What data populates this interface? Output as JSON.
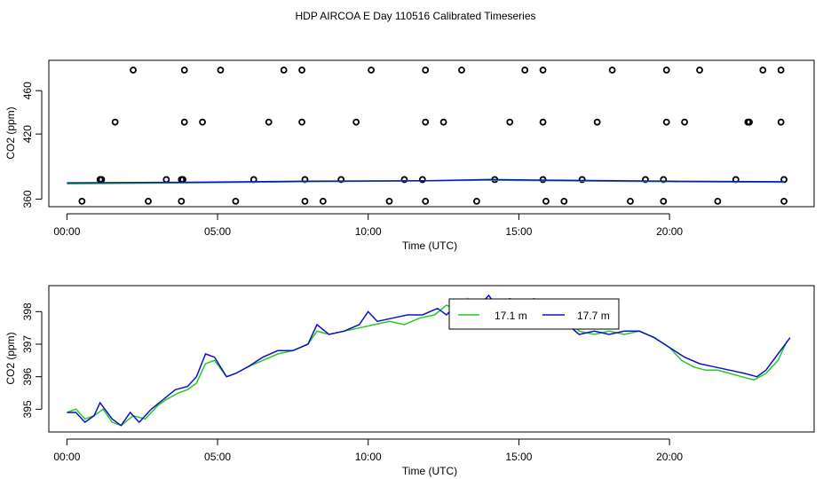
{
  "page_title": "HDP AIRCOA E  Day 110516  Calibrated Timeseries",
  "colors": {
    "green": "#22cc22",
    "blue": "#1010cc",
    "black": "#000000"
  },
  "chart_data": [
    {
      "type": "scatter",
      "title": "",
      "xlabel": "Time (UTC)",
      "ylabel": "CO2 (ppm)",
      "x_unit": "hours",
      "xlim": [
        -0.6,
        24.8
      ],
      "ylim": [
        353,
        488
      ],
      "x_ticks": [
        0,
        5,
        10,
        15,
        20
      ],
      "x_tick_labels": [
        "00:00",
        "05:00",
        "10:00",
        "15:00",
        "20:00"
      ],
      "y_ticks": [
        360,
        420,
        460
      ],
      "y_tick_labels": [
        "360",
        "420",
        "460"
      ],
      "series": [
        {
          "kind": "points",
          "color": "black",
          "points": [
            [
              0.5,
              358
            ],
            [
              2.7,
              358
            ],
            [
              3.8,
              358
            ],
            [
              5.6,
              358
            ],
            [
              7.9,
              358
            ],
            [
              8.5,
              358
            ],
            [
              10.7,
              358
            ],
            [
              11.9,
              358
            ],
            [
              13.6,
              358
            ],
            [
              15.9,
              358
            ],
            [
              16.5,
              358
            ],
            [
              18.7,
              358
            ],
            [
              19.8,
              358
            ],
            [
              21.6,
              358
            ],
            [
              23.8,
              358
            ],
            [
              1.1,
              378
            ],
            [
              1.15,
              378
            ],
            [
              3.3,
              378
            ],
            [
              3.8,
              378
            ],
            [
              3.85,
              378
            ],
            [
              6.2,
              378
            ],
            [
              7.9,
              378
            ],
            [
              9.1,
              378
            ],
            [
              11.2,
              378
            ],
            [
              11.8,
              378
            ],
            [
              14.2,
              378
            ],
            [
              15.8,
              378
            ],
            [
              17.1,
              378
            ],
            [
              19.2,
              378
            ],
            [
              19.8,
              378
            ],
            [
              22.2,
              378
            ],
            [
              23.8,
              378
            ],
            [
              1.6,
              431
            ],
            [
              3.9,
              431
            ],
            [
              4.5,
              431
            ],
            [
              6.7,
              431
            ],
            [
              7.8,
              431
            ],
            [
              9.6,
              431
            ],
            [
              11.9,
              431
            ],
            [
              12.5,
              431
            ],
            [
              14.7,
              431
            ],
            [
              15.8,
              431
            ],
            [
              17.6,
              431
            ],
            [
              19.9,
              431
            ],
            [
              20.5,
              431
            ],
            [
              22.6,
              431
            ],
            [
              22.65,
              431
            ],
            [
              23.7,
              431
            ],
            [
              2.2,
              479
            ],
            [
              3.9,
              479
            ],
            [
              5.1,
              479
            ],
            [
              7.2,
              479
            ],
            [
              7.8,
              479
            ],
            [
              10.1,
              479
            ],
            [
              11.9,
              479
            ],
            [
              13.1,
              479
            ],
            [
              15.2,
              479
            ],
            [
              15.8,
              479
            ],
            [
              18.1,
              479
            ],
            [
              19.9,
              479
            ],
            [
              21.0,
              479
            ],
            [
              23.1,
              479
            ],
            [
              23.7,
              479
            ]
          ]
        },
        {
          "kind": "line",
          "color": "green",
          "points": [
            [
              0,
              374
            ],
            [
              4,
              375
            ],
            [
              8,
              376
            ],
            [
              12,
              377
            ],
            [
              14,
              377.5
            ],
            [
              16,
              377
            ],
            [
              20,
              376
            ],
            [
              23.8,
              375.5
            ]
          ]
        },
        {
          "kind": "line",
          "color": "blue",
          "points": [
            [
              0,
              375
            ],
            [
              4,
              375.5
            ],
            [
              8,
              376.5
            ],
            [
              12,
              377
            ],
            [
              14,
              378
            ],
            [
              16,
              377.5
            ],
            [
              20,
              376.5
            ],
            [
              23.8,
              376
            ]
          ]
        }
      ]
    },
    {
      "type": "line",
      "title": "",
      "xlabel": "Time (UTC)",
      "ylabel": "CO2 (ppm)",
      "x_unit": "hours",
      "xlim": [
        -0.6,
        24.8
      ],
      "ylim": [
        394.3,
        398.8
      ],
      "x_ticks": [
        0,
        5,
        10,
        15,
        20
      ],
      "x_tick_labels": [
        "00:00",
        "05:00",
        "10:00",
        "15:00",
        "20:00"
      ],
      "y_ticks": [
        395,
        396,
        397,
        398
      ],
      "y_tick_labels": [
        "395",
        "396",
        "397",
        "398"
      ],
      "legend_position": "top-center",
      "series": [
        {
          "name": "17.1 m",
          "color": "green",
          "points": [
            [
              0,
              394.9
            ],
            [
              0.3,
              395.0
            ],
            [
              0.6,
              394.7
            ],
            [
              0.9,
              394.8
            ],
            [
              1.2,
              395.0
            ],
            [
              1.5,
              394.6
            ],
            [
              1.8,
              394.5
            ],
            [
              2.2,
              394.8
            ],
            [
              2.6,
              394.7
            ],
            [
              3.0,
              395.1
            ],
            [
              3.3,
              395.3
            ],
            [
              3.7,
              395.5
            ],
            [
              4.0,
              395.6
            ],
            [
              4.3,
              395.8
            ],
            [
              4.6,
              396.4
            ],
            [
              4.9,
              396.5
            ],
            [
              5.3,
              396.0
            ],
            [
              5.6,
              396.1
            ],
            [
              6.0,
              396.3
            ],
            [
              6.5,
              396.5
            ],
            [
              7.0,
              396.7
            ],
            [
              7.5,
              396.8
            ],
            [
              8.0,
              397.0
            ],
            [
              8.3,
              397.4
            ],
            [
              8.7,
              397.3
            ],
            [
              9.2,
              397.4
            ],
            [
              9.7,
              397.5
            ],
            [
              10.2,
              397.6
            ],
            [
              10.7,
              397.7
            ],
            [
              11.2,
              397.6
            ],
            [
              11.7,
              397.8
            ],
            [
              12.2,
              397.9
            ],
            [
              12.6,
              398.2
            ],
            [
              13.0,
              398.0
            ],
            [
              13.3,
              398.4
            ],
            [
              13.6,
              397.9
            ],
            [
              14.0,
              398.1
            ],
            [
              14.5,
              398.2
            ],
            [
              15.0,
              398.3
            ],
            [
              15.4,
              398.2
            ],
            [
              15.8,
              398.3
            ],
            [
              16.2,
              398.0
            ],
            [
              16.6,
              397.8
            ],
            [
              17.0,
              397.4
            ],
            [
              17.5,
              397.3
            ],
            [
              18.0,
              397.4
            ],
            [
              18.5,
              397.3
            ],
            [
              19.0,
              397.4
            ],
            [
              19.5,
              397.2
            ],
            [
              20.0,
              396.9
            ],
            [
              20.4,
              396.5
            ],
            [
              20.8,
              396.3
            ],
            [
              21.2,
              396.2
            ],
            [
              21.6,
              396.2
            ],
            [
              22.0,
              396.1
            ],
            [
              22.4,
              396.0
            ],
            [
              22.8,
              395.9
            ],
            [
              23.2,
              396.1
            ],
            [
              23.6,
              396.5
            ],
            [
              23.9,
              397.1
            ]
          ]
        },
        {
          "name": "17.7 m",
          "color": "blue",
          "points": [
            [
              0,
              394.9
            ],
            [
              0.3,
              394.9
            ],
            [
              0.6,
              394.6
            ],
            [
              0.9,
              394.8
            ],
            [
              1.1,
              395.2
            ],
            [
              1.5,
              394.7
            ],
            [
              1.8,
              394.5
            ],
            [
              2.1,
              394.9
            ],
            [
              2.4,
              394.6
            ],
            [
              2.8,
              395.0
            ],
            [
              3.2,
              395.3
            ],
            [
              3.6,
              395.6
            ],
            [
              4.0,
              395.7
            ],
            [
              4.3,
              396.0
            ],
            [
              4.6,
              396.7
            ],
            [
              4.9,
              396.6
            ],
            [
              5.3,
              396.0
            ],
            [
              5.6,
              396.1
            ],
            [
              6.0,
              396.3
            ],
            [
              6.5,
              396.6
            ],
            [
              7.0,
              396.8
            ],
            [
              7.5,
              396.8
            ],
            [
              8.0,
              397.0
            ],
            [
              8.3,
              397.6
            ],
            [
              8.7,
              397.3
            ],
            [
              9.2,
              397.4
            ],
            [
              9.7,
              397.6
            ],
            [
              10.0,
              398.0
            ],
            [
              10.3,
              397.7
            ],
            [
              10.8,
              397.8
            ],
            [
              11.3,
              397.9
            ],
            [
              11.8,
              397.9
            ],
            [
              12.3,
              398.1
            ],
            [
              12.6,
              397.9
            ],
            [
              13.0,
              398.3
            ],
            [
              13.5,
              398.0
            ],
            [
              14.0,
              398.5
            ],
            [
              14.3,
              398.1
            ],
            [
              14.7,
              398.4
            ],
            [
              15.1,
              398.2
            ],
            [
              15.5,
              398.4
            ],
            [
              15.8,
              398.2
            ],
            [
              16.1,
              398.0
            ],
            [
              16.5,
              397.7
            ],
            [
              17.0,
              397.3
            ],
            [
              17.5,
              397.4
            ],
            [
              18.0,
              397.3
            ],
            [
              18.5,
              397.4
            ],
            [
              19.0,
              397.4
            ],
            [
              19.5,
              397.2
            ],
            [
              20.0,
              396.9
            ],
            [
              20.5,
              396.6
            ],
            [
              21.0,
              396.4
            ],
            [
              21.5,
              396.3
            ],
            [
              22.0,
              396.2
            ],
            [
              22.5,
              396.1
            ],
            [
              22.9,
              396.0
            ],
            [
              23.2,
              396.2
            ],
            [
              23.6,
              396.7
            ],
            [
              24.0,
              397.2
            ]
          ]
        }
      ]
    }
  ]
}
